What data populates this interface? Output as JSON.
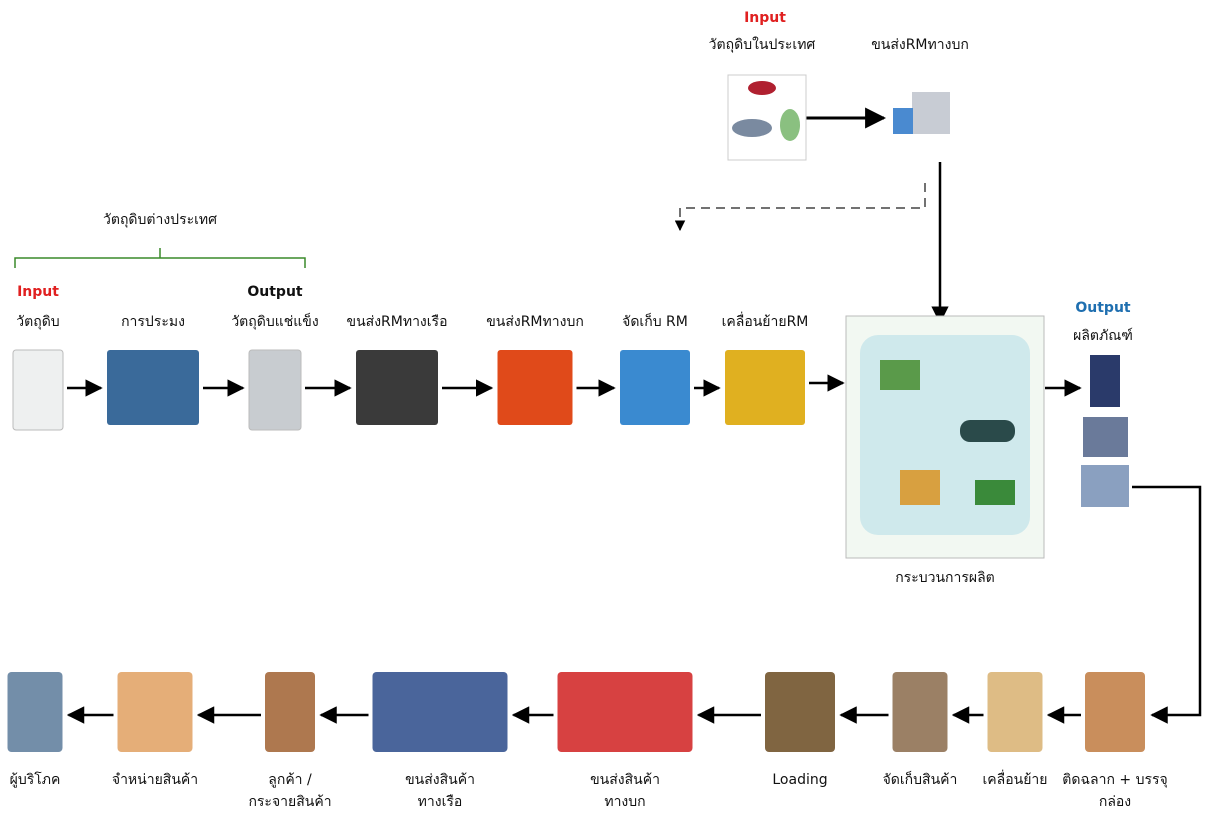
{
  "domestic": {
    "tag": "Input",
    "source": "วัตถุดิบในประเทศ",
    "transport": "ขนส่งRMทางบก"
  },
  "foreign_group": "วัตถุดิบต่างประเทศ",
  "upper_flow": [
    {
      "tag": "Input",
      "label": "วัตถุดิบ"
    },
    {
      "label": "การประมง"
    },
    {
      "tag": "Output",
      "label": "วัตถุดิบแช่แข็ง"
    },
    {
      "label": "ขนส่งRMทางเรือ"
    },
    {
      "label": "ขนส่งRMทางบก"
    },
    {
      "label": "จัดเก็บ RM"
    },
    {
      "label": "เคลื่อนย้ายRM"
    }
  ],
  "production": "กระบวนการผลิต",
  "product": {
    "tag": "Output",
    "label": "ผลิตภัณฑ์"
  },
  "lower_flow": [
    {
      "lines": [
        "ติดฉลาก + บรรจุ",
        "กล่อง"
      ]
    },
    {
      "lines": [
        "เคลื่อนย้าย"
      ]
    },
    {
      "lines": [
        "จัดเก็บสินค้า"
      ]
    },
    {
      "lines": [
        "Loading"
      ]
    },
    {
      "lines": [
        "ขนส่งสินค้า",
        "ทางบก"
      ]
    },
    {
      "lines": [
        "ขนส่งสินค้า",
        "ทางเรือ"
      ]
    },
    {
      "lines": [
        "ลูกค้า /",
        "กระจายสินค้า"
      ]
    },
    {
      "lines": [
        "จำหน่ายสินค้า"
      ]
    },
    {
      "lines": [
        "ผู้บริโภค"
      ]
    }
  ]
}
